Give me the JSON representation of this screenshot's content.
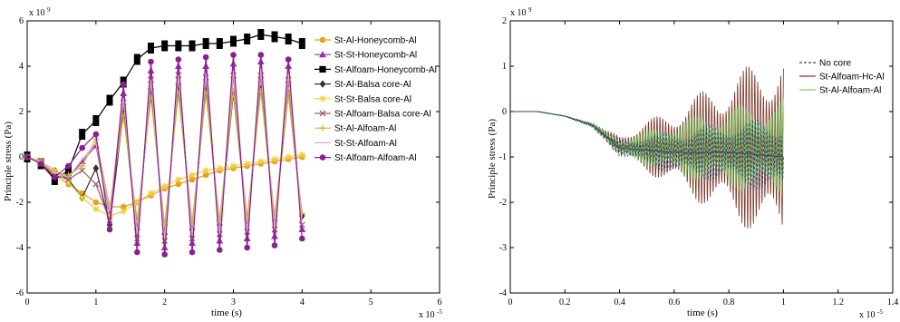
{
  "chart_data": [
    {
      "type": "line",
      "xlabel": "time (s)",
      "ylabel": "Principle stress (Pa)",
      "x_multiplier": "x 10",
      "x_multiplier_exp": "-5",
      "y_multiplier": "x 10",
      "y_multiplier_exp": "9",
      "xlim": [
        0,
        6
      ],
      "ylim": [
        -6,
        6
      ],
      "xticks": [
        "0",
        "1",
        "2",
        "3",
        "4",
        "5",
        "6"
      ],
      "yticks": [
        "-6",
        "-4",
        "-2",
        "0",
        "2",
        "4",
        "6"
      ],
      "grid": false,
      "legend_position": "top-right",
      "series": [
        {
          "name": "St-Al-Honeycomb-Al",
          "color": "#e8a020",
          "marker": "circle",
          "x": [
            0,
            0.2,
            0.4,
            0.6,
            0.8,
            1.0,
            1.2,
            1.4,
            1.6,
            1.8,
            2.0,
            2.2,
            2.4,
            2.6,
            2.8,
            3.0,
            3.2,
            3.4,
            3.6,
            3.8,
            4.0
          ],
          "y": [
            0,
            -0.2,
            -0.8,
            -1.2,
            -1.6,
            -2.0,
            -2.2,
            -2.2,
            -2.0,
            -1.7,
            -1.4,
            -1.2,
            -1.0,
            -0.8,
            -0.6,
            -0.5,
            -0.4,
            -0.3,
            -0.2,
            -0.1,
            0
          ]
        },
        {
          "name": "St-St-Honeycomb-Al",
          "color": "#9b30b0",
          "marker": "triangle",
          "x": [
            0,
            0.2,
            0.4,
            0.6,
            0.8,
            1.0,
            1.2,
            1.4,
            1.6,
            1.8,
            2.0,
            2.2,
            2.4,
            2.6,
            2.8,
            3.0,
            3.2,
            3.4,
            3.6,
            3.8,
            4.0
          ],
          "y": [
            0,
            -0.2,
            -0.7,
            -0.9,
            -0.2,
            0.5,
            -2.5,
            2.8,
            -3.8,
            3.8,
            -4.0,
            4.0,
            -3.8,
            4.0,
            -3.7,
            4.1,
            -3.6,
            4.2,
            -3.5,
            4.0,
            -3.2
          ]
        },
        {
          "name": "St-Alfoam-Honeycomb-Al",
          "color": "#000000",
          "marker": "square",
          "x": [
            0,
            0.2,
            0.4,
            0.6,
            0.8,
            1.0,
            1.2,
            1.4,
            1.6,
            1.8,
            2.0,
            2.2,
            2.4,
            2.6,
            2.8,
            3.0,
            3.2,
            3.4,
            3.6,
            3.8,
            4.0
          ],
          "y": [
            0,
            -0.3,
            -1.0,
            -0.6,
            1.0,
            1.6,
            2.5,
            3.3,
            4.3,
            4.8,
            4.9,
            4.9,
            4.9,
            5.0,
            5.0,
            5.1,
            5.2,
            5.4,
            5.3,
            5.2,
            5.0
          ]
        },
        {
          "name": "St-Al-Balsa core-Al",
          "color": "#3a2a2a",
          "marker": "diamond",
          "x": [
            0,
            0.2,
            0.4,
            0.6,
            0.8,
            1.0,
            1.2,
            1.4,
            1.6,
            1.8,
            2.0,
            2.2,
            2.4,
            2.6,
            2.8,
            3.0,
            3.2,
            3.4,
            3.6,
            3.8,
            4.0
          ],
          "y": [
            0,
            -0.2,
            -0.6,
            -1.0,
            -1.8,
            -0.5,
            -3.0,
            2.0,
            -3.2,
            3.0,
            -3.4,
            3.2,
            -3.2,
            3.0,
            -3.0,
            2.8,
            -2.8,
            3.0,
            -2.8,
            2.8,
            -2.6
          ]
        },
        {
          "name": "St-St-Balsa core-Al",
          "color": "#f0d040",
          "marker": "star",
          "x": [
            0,
            0.2,
            0.4,
            0.6,
            0.8,
            1.0,
            1.2,
            1.4,
            1.6,
            1.8,
            2.0,
            2.2,
            2.4,
            2.6,
            2.8,
            3.0,
            3.2,
            3.4,
            3.6,
            3.8,
            4.0
          ],
          "y": [
            0,
            -0.2,
            -0.6,
            -1.1,
            -1.8,
            -2.3,
            -2.6,
            -2.4,
            -2.0,
            -1.6,
            -1.3,
            -1.0,
            -0.8,
            -0.6,
            -0.5,
            -0.4,
            -0.3,
            -0.2,
            -0.1,
            0,
            0.1
          ]
        },
        {
          "name": "St-Alfoam-Balsa core-Al",
          "color": "#a06070",
          "marker": "x",
          "x": [
            0,
            0.2,
            0.4,
            0.6,
            0.8,
            1.0,
            1.2,
            1.4,
            1.6,
            1.8,
            2.0,
            2.2,
            2.4,
            2.6,
            2.8,
            3.0,
            3.2,
            3.4,
            3.6,
            3.8,
            4.0
          ],
          "y": [
            0,
            -0.3,
            -0.8,
            -1.0,
            -0.6,
            -1.2,
            -2.8,
            2.4,
            -3.6,
            3.4,
            -3.7,
            3.6,
            -3.6,
            3.5,
            -3.4,
            3.6,
            -3.3,
            3.6,
            -3.2,
            3.4,
            -3.0
          ]
        },
        {
          "name": "St-Al-Alfoam-Al",
          "color": "#c8b830",
          "marker": "plus",
          "x": [
            0,
            0.2,
            0.4,
            0.6,
            0.8,
            1.0,
            1.2,
            1.4,
            1.6,
            1.8,
            2.0,
            2.2,
            2.4,
            2.6,
            2.8,
            3.0,
            3.2,
            3.4,
            3.6,
            3.8,
            4.0
          ],
          "y": [
            0,
            -0.2,
            -0.7,
            -0.8,
            -0.4,
            0.8,
            -2.2,
            1.8,
            -2.8,
            2.6,
            -3.0,
            2.8,
            -2.9,
            2.8,
            -2.8,
            2.9,
            -2.7,
            2.9,
            -2.6,
            2.8,
            -2.5
          ]
        },
        {
          "name": "St-St-Alfoam-Al",
          "color": "#e8a8c8",
          "marker": "none",
          "x": [
            0,
            0.2,
            0.4,
            0.6,
            0.8,
            1.0,
            1.2,
            1.4,
            1.6,
            1.8,
            2.0,
            2.2,
            2.4,
            2.6,
            2.8,
            3.0,
            3.2,
            3.4,
            3.6,
            3.8,
            4.0
          ],
          "y": [
            0,
            -0.2,
            -0.7,
            -0.9,
            -0.1,
            0.6,
            -2.4,
            2.6,
            -3.4,
            3.4,
            -3.6,
            3.6,
            -3.5,
            3.7,
            -3.4,
            3.8,
            -3.3,
            3.9,
            -3.2,
            3.7,
            -3.0
          ]
        },
        {
          "name": "St-Alfoam-Alfoam-Al",
          "color": "#8a2090",
          "marker": "circle",
          "x": [
            0,
            0.2,
            0.4,
            0.6,
            0.8,
            1.0,
            1.2,
            1.4,
            1.6,
            1.8,
            2.0,
            2.2,
            2.4,
            2.6,
            2.8,
            3.0,
            3.2,
            3.4,
            3.6,
            3.8,
            4.0
          ],
          "y": [
            0,
            -0.3,
            -0.9,
            -0.4,
            0.4,
            1.0,
            -3.2,
            3.2,
            -4.2,
            4.2,
            -4.3,
            4.3,
            -4.2,
            4.4,
            -4.1,
            4.5,
            -4.0,
            4.5,
            -3.9,
            4.3,
            -3.6
          ]
        }
      ]
    },
    {
      "type": "line",
      "xlabel": "time (s)",
      "ylabel": "Principle stress (Pa)",
      "x_multiplier": "x 10",
      "x_multiplier_exp": "-5",
      "y_multiplier": "x 10",
      "y_multiplier_exp": "9",
      "xlim": [
        0,
        1.4
      ],
      "ylim": [
        -4,
        2
      ],
      "xticks": [
        "0",
        "0.2",
        "0.4",
        "0.6",
        "0.8",
        "1",
        "1.2",
        "1.4"
      ],
      "yticks": [
        "-4",
        "-3",
        "-2",
        "-1",
        "0",
        "1",
        "2"
      ],
      "grid": false,
      "legend_position": "top-right",
      "series": [
        {
          "name": "No core",
          "color": "#2a4a6a",
          "style": "dashed",
          "center": [
            [
              0,
              0
            ],
            [
              0.1,
              0
            ],
            [
              0.2,
              -0.1
            ],
            [
              0.3,
              -0.3
            ],
            [
              0.4,
              -0.8
            ],
            [
              0.6,
              -0.9
            ],
            [
              0.8,
              -0.9
            ],
            [
              1.0,
              -1.0
            ]
          ],
          "amplitude": [
            [
              0,
              0
            ],
            [
              0.2,
              0
            ],
            [
              0.35,
              0.1
            ],
            [
              0.4,
              0.2
            ],
            [
              0.6,
              0.5
            ],
            [
              0.8,
              0.7
            ],
            [
              1.0,
              0.9
            ]
          ]
        },
        {
          "name": "St-Alfoam-Hc-Al",
          "color": "#7a3a2a",
          "style": "solid",
          "center": [
            [
              0,
              0
            ],
            [
              0.1,
              0
            ],
            [
              0.2,
              -0.1
            ],
            [
              0.3,
              -0.3
            ],
            [
              0.4,
              -0.75
            ],
            [
              0.6,
              -0.8
            ],
            [
              0.8,
              -0.8
            ],
            [
              1.0,
              -0.8
            ]
          ],
          "amplitude": [
            [
              0,
              0
            ],
            [
              0.2,
              0
            ],
            [
              0.35,
              0.1
            ],
            [
              0.4,
              0.25
            ],
            [
              0.6,
              0.9
            ],
            [
              0.8,
              1.6
            ],
            [
              1.0,
              2.2
            ]
          ]
        },
        {
          "name": "St-Al-Alfoam-Al",
          "color": "#7ed060",
          "style": "solid",
          "center": [
            [
              0,
              0
            ],
            [
              0.1,
              0
            ],
            [
              0.2,
              -0.1
            ],
            [
              0.3,
              -0.3
            ],
            [
              0.4,
              -0.8
            ],
            [
              0.6,
              -0.8
            ],
            [
              0.8,
              -0.8
            ],
            [
              1.0,
              -0.8
            ]
          ],
          "amplitude": [
            [
              0,
              0
            ],
            [
              0.2,
              0
            ],
            [
              0.35,
              0.1
            ],
            [
              0.4,
              0.2
            ],
            [
              0.6,
              0.6
            ],
            [
              0.8,
              0.9
            ],
            [
              1.0,
              1.1
            ]
          ]
        }
      ]
    }
  ]
}
